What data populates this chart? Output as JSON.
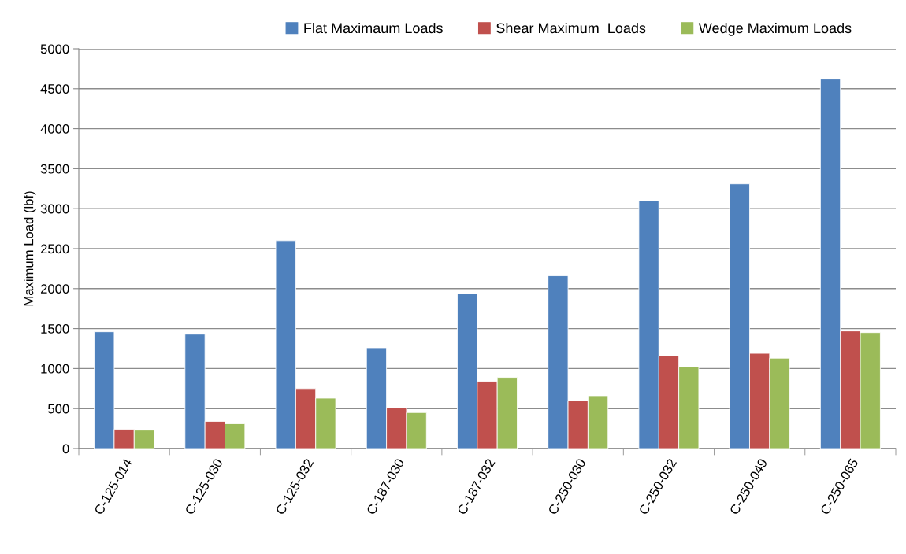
{
  "chart_data": {
    "type": "bar",
    "ylabel": "Maximum Load (lbf)",
    "categories": [
      "C-125-014",
      "C-125-030",
      "C-125-032",
      "C-187-030",
      "C-187-032",
      "C-250-030",
      "C-250-032",
      "C-250-049",
      "C-250-065"
    ],
    "series": [
      {
        "name": "Flat Maximaum Loads",
        "color": "#4f81bd",
        "values": [
          1460,
          1430,
          2600,
          1260,
          1940,
          2160,
          3100,
          3310,
          4620
        ]
      },
      {
        "name": "Shear Maximum  Loads",
        "color": "#c0504d",
        "values": [
          240,
          340,
          750,
          510,
          840,
          600,
          1160,
          1190,
          1470
        ]
      },
      {
        "name": "Wedge Maximum Loads",
        "color": "#9bbb59",
        "values": [
          230,
          310,
          630,
          450,
          890,
          660,
          1020,
          1130,
          1450
        ]
      }
    ],
    "ylim": [
      0,
      5000
    ],
    "yticks": [
      0,
      500,
      1000,
      1500,
      2000,
      2500,
      3000,
      3500,
      4000,
      4500,
      5000
    ],
    "grid": "y",
    "legend": "top"
  }
}
